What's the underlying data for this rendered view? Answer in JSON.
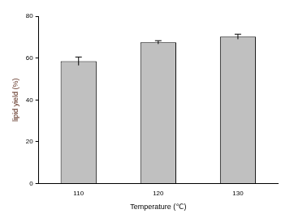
{
  "chart_data": {
    "type": "bar",
    "x_label": "Temperature (℃)",
    "y_label": "lipid yield (%)",
    "categories": [
      "110",
      "120",
      "130"
    ],
    "values": [
      58.5,
      67.5,
      70.2
    ],
    "errors": [
      2.0,
      0.8,
      1.2
    ],
    "color": "#c0c0c0",
    "ylim": [
      0,
      80
    ],
    "yticks": [
      0,
      20,
      40,
      60,
      80
    ],
    "grid": false
  }
}
